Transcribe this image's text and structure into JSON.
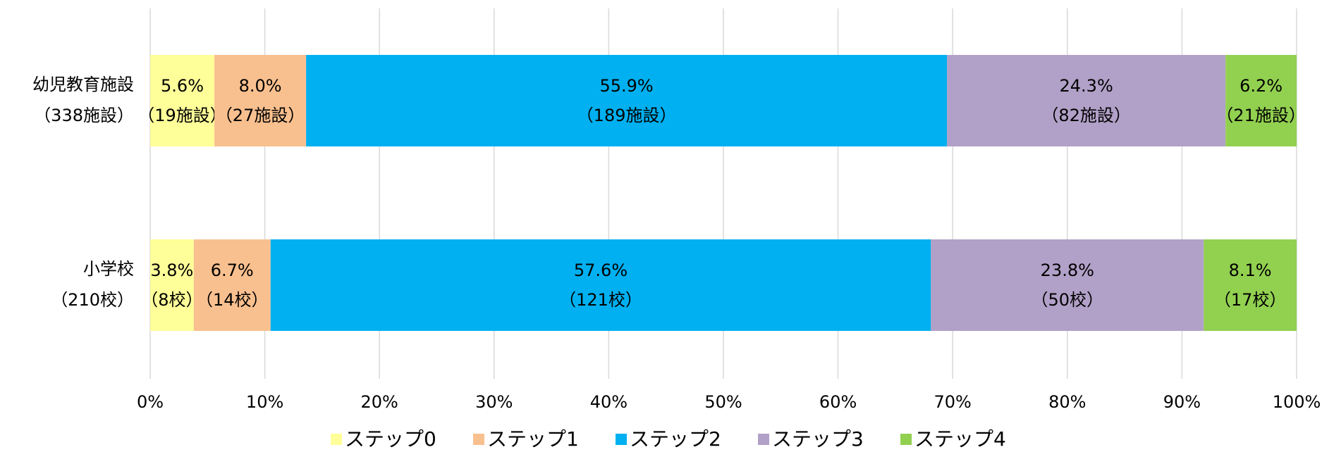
{
  "chart_data": {
    "type": "stacked-barh",
    "categories": [
      [
        "幼児教育施設",
        "（338施設）"
      ],
      [
        "小学校",
        "（210校）"
      ]
    ],
    "series": [
      {
        "name": "ステップ0",
        "color": "#ffff99",
        "values": [
          5.6,
          3.8
        ],
        "value_labels": [
          "5.6%",
          "3.8%"
        ],
        "count_labels": [
          "（19施設）",
          "（8校）"
        ]
      },
      {
        "name": "ステップ1",
        "color": "#f9c08f",
        "values": [
          8.0,
          6.7
        ],
        "value_labels": [
          "8.0%",
          "6.7%"
        ],
        "count_labels": [
          "（27施設）",
          "（14校）"
        ]
      },
      {
        "name": "ステップ2",
        "color": "#00b0f0",
        "values": [
          55.9,
          57.6
        ],
        "value_labels": [
          "55.9%",
          "57.6%"
        ],
        "count_labels": [
          "（189施設）",
          "（121校）"
        ]
      },
      {
        "name": "ステップ3",
        "color": "#b1a0c7",
        "values": [
          24.3,
          23.8
        ],
        "value_labels": [
          "24.3%",
          "23.8%"
        ],
        "count_labels": [
          "（82施設）",
          "（50校）"
        ]
      },
      {
        "name": "ステップ4",
        "color": "#92d050",
        "values": [
          6.2,
          8.1
        ],
        "value_labels": [
          "6.2%",
          "8.1%"
        ],
        "count_labels": [
          "（21施設）",
          "（17校）"
        ]
      }
    ],
    "xlim": [
      0,
      100
    ],
    "xticks": [
      {
        "value": 0,
        "label": "0%"
      },
      {
        "value": 10,
        "label": "10%"
      },
      {
        "value": 20,
        "label": "20%"
      },
      {
        "value": 30,
        "label": "30%"
      },
      {
        "value": 40,
        "label": "40%"
      },
      {
        "value": 50,
        "label": "50%"
      },
      {
        "value": 60,
        "label": "60%"
      },
      {
        "value": 70,
        "label": "70%"
      },
      {
        "value": 80,
        "label": "80%"
      },
      {
        "value": 90,
        "label": "90%"
      },
      {
        "value": 100,
        "label": "100%"
      }
    ],
    "grid": true,
    "legend": "bottom"
  }
}
